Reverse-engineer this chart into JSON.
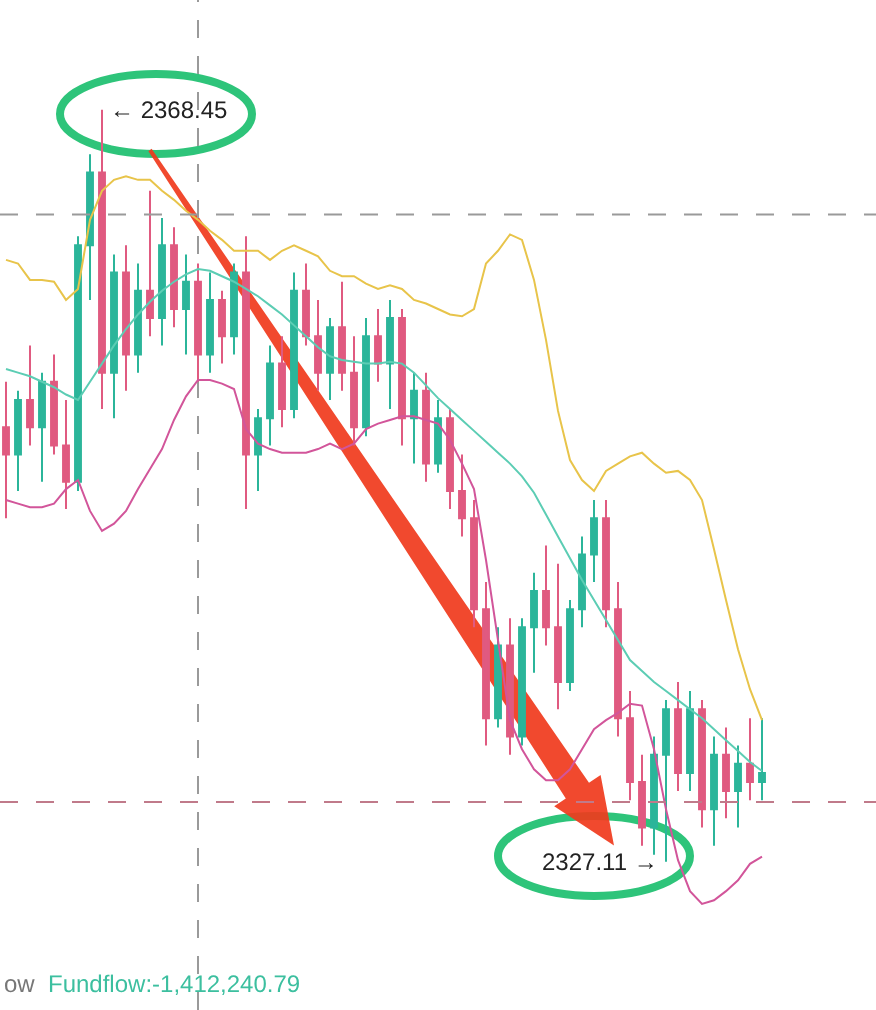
{
  "chart_data": {
    "type": "candlestick",
    "categories": [
      null,
      null,
      null,
      null,
      null,
      null,
      null,
      null,
      null,
      null,
      null,
      null,
      null,
      null,
      null,
      null,
      null,
      null,
      null,
      null,
      null,
      null,
      null,
      null,
      null,
      null,
      null,
      null,
      null,
      null,
      null,
      null,
      null,
      null,
      null,
      null,
      null,
      null,
      null,
      null,
      null,
      null,
      null,
      null,
      null,
      null,
      null,
      null,
      null,
      null,
      null,
      null,
      null,
      null,
      null,
      null,
      null,
      null,
      null,
      null,
      null,
      null,
      null,
      null
    ],
    "ohlc": [
      [
        2351.0,
        2353.5,
        2346.0,
        2349.5
      ],
      [
        2349.5,
        2353.0,
        2347.5,
        2352.5
      ],
      [
        2352.5,
        2355.5,
        2350.0,
        2351.0
      ],
      [
        2351.0,
        2354.0,
        2348.0,
        2353.5
      ],
      [
        2353.5,
        2355.0,
        2349.5,
        2350.0
      ],
      [
        2350.0,
        2352.5,
        2346.5,
        2348.0
      ],
      [
        2348.0,
        2361.5,
        2347.5,
        2361.0
      ],
      [
        2361.0,
        2366.0,
        2358.0,
        2365.0
      ],
      [
        2365.0,
        2368.45,
        2352.0,
        2354.0
      ],
      [
        2354.0,
        2360.5,
        2351.5,
        2359.5
      ],
      [
        2359.5,
        2361.0,
        2353.0,
        2355.0
      ],
      [
        2355.0,
        2360.0,
        2354.0,
        2358.5
      ],
      [
        2358.5,
        2364.0,
        2356.0,
        2357.0
      ],
      [
        2357.0,
        2362.5,
        2355.5,
        2361.0
      ],
      [
        2361.0,
        2362.0,
        2356.5,
        2357.5
      ],
      [
        2357.5,
        2360.5,
        2355.0,
        2359.0
      ],
      [
        2359.0,
        2360.0,
        2353.5,
        2355.0
      ],
      [
        2355.0,
        2359.5,
        2354.0,
        2358.0
      ],
      [
        2358.0,
        2358.5,
        2354.5,
        2356.0
      ],
      [
        2356.0,
        2360.0,
        2355.0,
        2359.5
      ],
      [
        2359.5,
        2361.5,
        2346.5,
        2349.5
      ],
      [
        2349.5,
        2352.0,
        2347.5,
        2351.5
      ],
      [
        2351.5,
        2355.5,
        2350.0,
        2354.5
      ],
      [
        2354.5,
        2356.0,
        2351.0,
        2352.0
      ],
      [
        2352.0,
        2359.5,
        2351.5,
        2358.5
      ],
      [
        2358.5,
        2360.0,
        2355.5,
        2356.0
      ],
      [
        2356.0,
        2358.0,
        2353.0,
        2354.0
      ],
      [
        2354.0,
        2357.0,
        2352.5,
        2356.5
      ],
      [
        2356.5,
        2359.0,
        2353.0,
        2354.0
      ],
      [
        2354.0,
        2356.0,
        2350.0,
        2351.0
      ],
      [
        2351.0,
        2357.0,
        2350.5,
        2356.0
      ],
      [
        2356.0,
        2357.5,
        2353.5,
        2354.5
      ],
      [
        2354.5,
        2358.0,
        2352.0,
        2357.0
      ],
      [
        2357.0,
        2357.5,
        2350.0,
        2351.5
      ],
      [
        2351.5,
        2354.0,
        2349.0,
        2353.0
      ],
      [
        2353.0,
        2354.0,
        2348.0,
        2349.0
      ],
      [
        2349.0,
        2352.5,
        2348.5,
        2351.5
      ],
      [
        2351.5,
        2352.0,
        2346.5,
        2347.5
      ],
      [
        2347.5,
        2349.5,
        2345.0,
        2346.0
      ],
      [
        2346.0,
        2347.0,
        2340.0,
        2341.0
      ],
      [
        2341.0,
        2342.5,
        2333.5,
        2335.0
      ],
      [
        2335.0,
        2340.0,
        2334.5,
        2339.0
      ],
      [
        2339.0,
        2340.5,
        2333.0,
        2334.0
      ],
      [
        2334.0,
        2340.5,
        2333.5,
        2340.0
      ],
      [
        2340.0,
        2343.0,
        2337.5,
        2342.0
      ],
      [
        2342.0,
        2344.5,
        2339.0,
        2340.0
      ],
      [
        2340.0,
        2343.5,
        2335.5,
        2337.0
      ],
      [
        2337.0,
        2341.5,
        2336.5,
        2341.0
      ],
      [
        2341.0,
        2345.0,
        2340.0,
        2344.0
      ],
      [
        2344.0,
        2347.0,
        2342.5,
        2346.0
      ],
      [
        2346.0,
        2347.0,
        2340.0,
        2341.0
      ],
      [
        2341.0,
        2342.5,
        2334.0,
        2335.0
      ],
      [
        2335.0,
        2336.5,
        2330.5,
        2331.5
      ],
      [
        2331.5,
        2333.0,
        2328.0,
        2329.0
      ],
      [
        2329.0,
        2334.0,
        2327.5,
        2333.0
      ],
      [
        2333.0,
        2336.0,
        2327.11,
        2335.5
      ],
      [
        2335.5,
        2337.0,
        2331.0,
        2332.0
      ],
      [
        2332.0,
        2336.5,
        2331.0,
        2335.5
      ],
      [
        2335.5,
        2336.0,
        2329.0,
        2330.0
      ],
      [
        2330.0,
        2334.0,
        2328.0,
        2333.0
      ],
      [
        2333.0,
        2334.5,
        2329.5,
        2331.0
      ],
      [
        2331.0,
        2333.5,
        2329.0,
        2332.5
      ],
      [
        2332.5,
        2335.0,
        2330.5,
        2331.5
      ],
      [
        2331.5,
        2335.0,
        2330.5,
        2332.0
      ]
    ],
    "colors": [
      "#e05a80",
      "#2bb59a",
      "#e05a80",
      "#2bb59a",
      "#e05a80",
      "#e05a80",
      "#2bb59a",
      "#2bb59a",
      "#e05a80",
      "#2bb59a",
      "#e05a80",
      "#2bb59a",
      "#e05a80",
      "#2bb59a",
      "#e05a80",
      "#2bb59a",
      "#e05a80",
      "#2bb59a",
      "#e05a80",
      "#2bb59a",
      "#e05a80",
      "#2bb59a",
      "#2bb59a",
      "#e05a80",
      "#2bb59a",
      "#e05a80",
      "#e05a80",
      "#2bb59a",
      "#e05a80",
      "#e05a80",
      "#2bb59a",
      "#e05a80",
      "#2bb59a",
      "#e05a80",
      "#2bb59a",
      "#e05a80",
      "#2bb59a",
      "#e05a80",
      "#e05a80",
      "#e05a80",
      "#e05a80",
      "#2bb59a",
      "#e05a80",
      "#2bb59a",
      "#2bb59a",
      "#e05a80",
      "#e05a80",
      "#2bb59a",
      "#2bb59a",
      "#2bb59a",
      "#e05a80",
      "#e05a80",
      "#e05a80",
      "#e05a80",
      "#2bb59a",
      "#2bb59a",
      "#e05a80",
      "#2bb59a",
      "#e05a80",
      "#2bb59a",
      "#e05a80",
      "#2bb59a",
      "#e05a80",
      "#2bb59a"
    ],
    "series": [
      {
        "type": "line",
        "color": "#e8c44a",
        "values": [
          2360.2,
          2360.0,
          2359.1,
          2359.1,
          2359.0,
          2358.0,
          2358.6,
          2362.4,
          2364.0,
          2364.6,
          2364.8,
          2364.6,
          2364.6,
          2364.0,
          2363.5,
          2362.9,
          2362.4,
          2361.8,
          2361.3,
          2360.7,
          2360.7,
          2360.7,
          2360.2,
          2360.7,
          2361.0,
          2360.7,
          2360.4,
          2359.6,
          2359.3,
          2359.3,
          2358.9,
          2358.6,
          2358.8,
          2358.6,
          2358.0,
          2357.8,
          2357.5,
          2357.2,
          2357.1,
          2357.5,
          2360.0,
          2360.7,
          2361.6,
          2361.3,
          2359.1,
          2355.8,
          2351.9,
          2349.2,
          2348.1,
          2347.5,
          2348.6,
          2349.0,
          2349.4,
          2349.6,
          2349.0,
          2348.5,
          2348.6,
          2348.1,
          2347.0,
          2344.3,
          2341.5,
          2338.8,
          2336.6,
          2334.9
        ]
      },
      {
        "type": "line",
        "color": "#5ccdb4",
        "values": [
          2354.2,
          2354.0,
          2353.8,
          2353.5,
          2353.2,
          2352.8,
          2352.5,
          2353.5,
          2354.5,
          2355.5,
          2356.4,
          2357.2,
          2357.9,
          2358.5,
          2359.0,
          2359.4,
          2359.7,
          2359.6,
          2359.3,
          2359.0,
          2358.6,
          2358.2,
          2357.7,
          2357.2,
          2356.6,
          2356.0,
          2355.4,
          2354.9,
          2354.7,
          2354.6,
          2354.5,
          2354.5,
          2354.6,
          2354.5,
          2354.0,
          2353.3,
          2352.6,
          2352.0,
          2351.4,
          2350.8,
          2350.2,
          2349.6,
          2349.0,
          2348.3,
          2347.4,
          2346.2,
          2345.0,
          2343.8,
          2342.6,
          2341.5,
          2340.4,
          2339.3,
          2338.2,
          2337.6,
          2337.0,
          2336.5,
          2336.0,
          2335.5,
          2335.0,
          2334.4,
          2333.8,
          2333.2,
          2332.6,
          2332.1
        ]
      },
      {
        "type": "line",
        "color": "#d2559a",
        "values": [
          2347.0,
          2346.8,
          2346.6,
          2346.6,
          2346.8,
          2347.6,
          2348.1,
          2346.4,
          2345.3,
          2345.7,
          2346.4,
          2347.6,
          2348.7,
          2349.8,
          2351.4,
          2352.7,
          2353.6,
          2353.6,
          2353.4,
          2353.1,
          2350.9,
          2350.1,
          2349.8,
          2349.6,
          2349.6,
          2349.6,
          2349.8,
          2350.1,
          2349.8,
          2350.1,
          2350.9,
          2351.2,
          2351.4,
          2351.6,
          2351.6,
          2351.4,
          2351.2,
          2350.3,
          2349.0,
          2347.6,
          2343.7,
          2339.3,
          2334.9,
          2333.3,
          2332.2,
          2331.6,
          2331.6,
          2332.2,
          2333.3,
          2334.4,
          2334.9,
          2335.3,
          2335.8,
          2335.7,
          2333.3,
          2330.0,
          2327.2,
          2325.5,
          2324.8,
          2325.0,
          2325.5,
          2326.1,
          2327.0,
          2327.4
        ]
      }
    ],
    "ref_lines": [
      {
        "axis": "y",
        "value": 2362.7,
        "color": "#9a9a9a",
        "line_style": "dashed"
      },
      {
        "axis": "y",
        "value": 2330.4,
        "color": "#c07a8a",
        "line_style": "dashed"
      }
    ],
    "annotations": [
      "← 2368.45",
      "2327.11 →",
      "ow",
      "Fundflow:-1,412,240.79"
    ],
    "tick_labels": false
  }
}
